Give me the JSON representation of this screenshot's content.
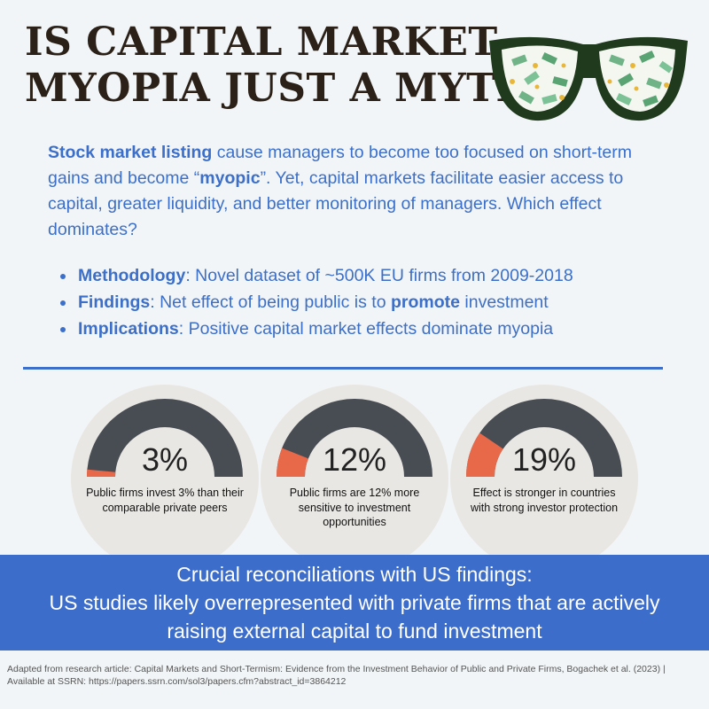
{
  "title": {
    "line1": "IS CAPITAL MARKET",
    "line2": "MYOPIA JUST A MYTH?"
  },
  "intro": {
    "lead_bold": "Stock market listing",
    "text1": " cause managers to become too focused on short-term gains and become “",
    "myopic": "myopic",
    "text2": "”. Yet, capital markets facilitate easier access to capital, greater liquidity, and better monitoring of managers. Which effect dominates?"
  },
  "bullets": [
    {
      "label": "Methodology",
      "text": ": Novel dataset of ~500K EU firms from 2009-2018"
    },
    {
      "label": "Findings",
      "text_before": ": Net effect of being public is to ",
      "emphasis": "promote",
      "text_after": " investment"
    },
    {
      "label": "Implications",
      "text": ": Positive capital market effects dominate myopia"
    }
  ],
  "stats": [
    {
      "value": "3%",
      "fraction": 0.03,
      "caption": "Public firms invest 3% than their comparable private peers"
    },
    {
      "value": "12%",
      "fraction": 0.12,
      "caption": "Public firms are 12% more sensitive to investment opportunities"
    },
    {
      "value": "19%",
      "fraction": 0.19,
      "caption": "Effect is stronger in countries with strong investor protection"
    }
  ],
  "banner": {
    "line1": "Crucial reconciliations with US findings:",
    "line2": "US studies likely overrepresented with private firms that are actively",
    "line3": "raising external capital to fund investment"
  },
  "footer": {
    "text": "Adapted from research article: Capital Markets and Short-Termism: Evidence from the Investment Behavior of Public and Private Firms, Bogachek et al. (2023) | Available at SSRN:  https://papers.ssrn.com/sol3/papers.cfm?abstract_id=3864212"
  },
  "colors": {
    "accent_blue": "#3b6fc9",
    "gauge_dark": "#484c53",
    "gauge_fill": "#e8694a",
    "banner_blue": "#3d6dca",
    "title_brown": "#2b2118"
  }
}
